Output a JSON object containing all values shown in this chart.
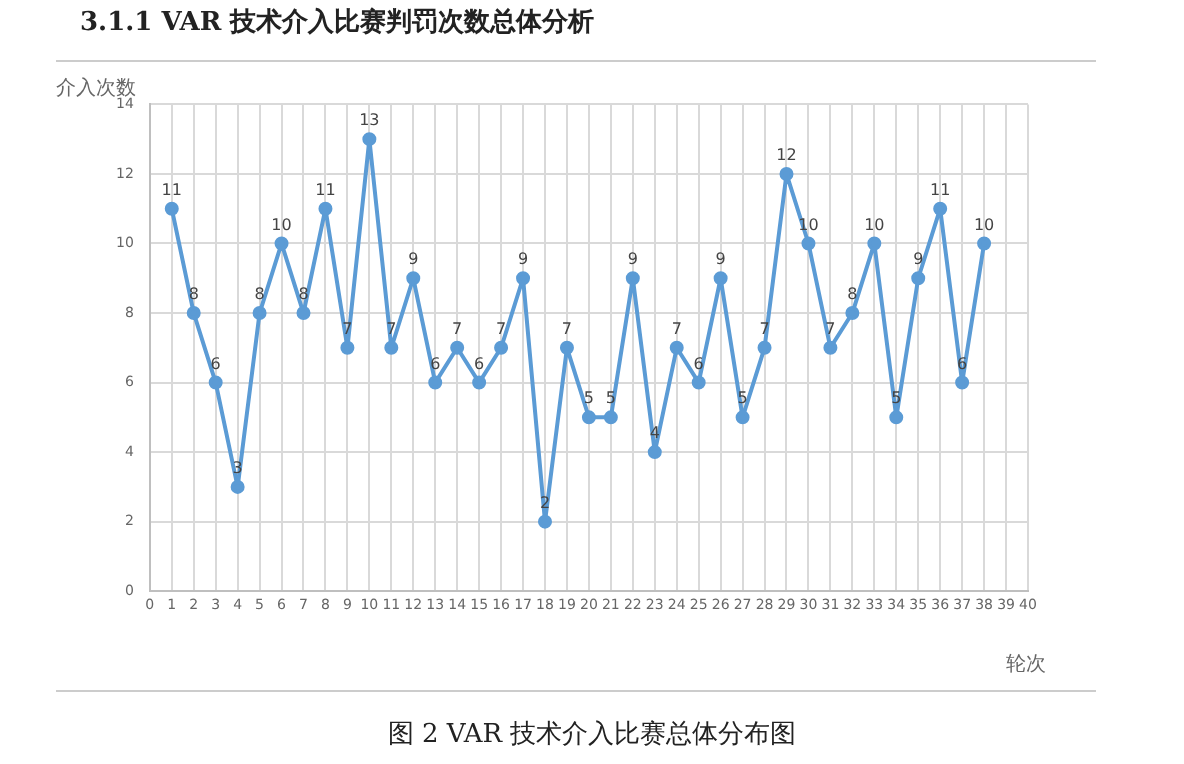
{
  "chart_data": {
    "type": "line",
    "title": "3.1.1  VAR 技术介入比赛判罚次数总体分析",
    "ylabel": "介入次数",
    "xlabel": "轮次",
    "annotations": [
      "图 2  VAR 技术介入比赛总体分布图"
    ],
    "x": [
      1,
      2,
      3,
      4,
      5,
      6,
      7,
      8,
      9,
      10,
      11,
      12,
      13,
      14,
      15,
      16,
      17,
      18,
      19,
      20,
      21,
      22,
      23,
      24,
      25,
      26,
      27,
      28,
      29,
      30,
      31,
      32,
      33,
      34,
      35,
      36,
      37,
      38
    ],
    "series": [
      {
        "color": "#5b9bd5",
        "values": [
          11,
          8,
          6,
          3,
          8,
          10,
          8,
          11,
          7,
          13,
          7,
          9,
          6,
          7,
          6,
          7,
          9,
          2,
          7,
          5,
          5,
          9,
          4,
          7,
          6,
          9,
          5,
          7,
          12,
          10,
          7,
          8,
          10,
          5,
          9,
          11,
          6,
          10
        ]
      }
    ],
    "xlim": [
      0,
      40
    ],
    "xticks": [
      0,
      1,
      2,
      3,
      4,
      5,
      6,
      7,
      8,
      9,
      10,
      11,
      12,
      13,
      14,
      15,
      16,
      17,
      18,
      19,
      20,
      21,
      22,
      23,
      24,
      25,
      26,
      27,
      28,
      29,
      30,
      31,
      32,
      33,
      34,
      35,
      36,
      37,
      38,
      39,
      40
    ],
    "ylim": [
      0,
      14
    ],
    "yticks": [
      0,
      2,
      4,
      6,
      8,
      10,
      12,
      14
    ],
    "grid": true,
    "legend": false,
    "marker": "circle",
    "line_style": "solid",
    "data_labels": true
  }
}
